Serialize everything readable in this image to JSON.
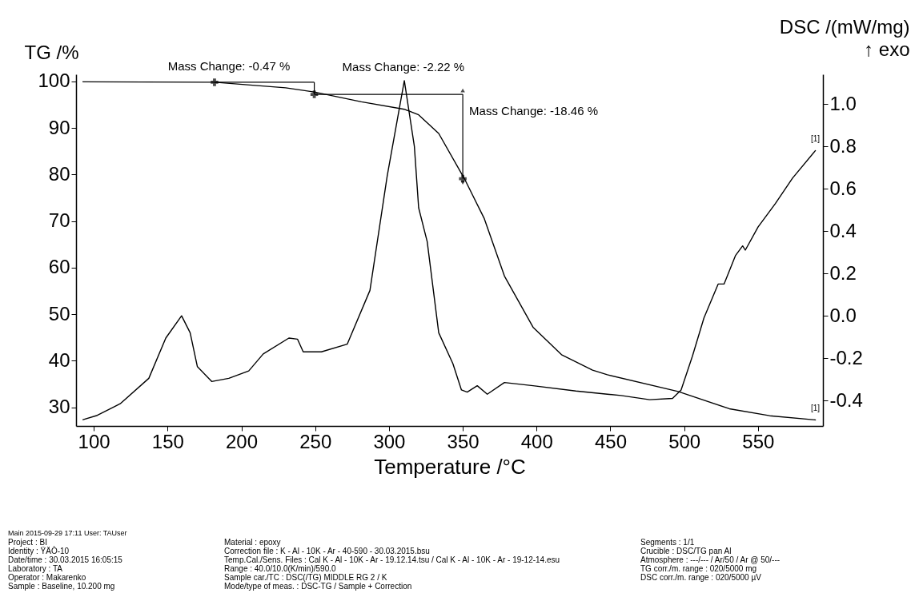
{
  "chart_data": {
    "type": "line",
    "xlabel": "Temperature /°C",
    "ylabel": "TG /%",
    "y2label": "DSC /(mW/mg)\n↑ exo",
    "xlim": [
      88,
      594
    ],
    "xticks": [
      100,
      150,
      200,
      250,
      300,
      350,
      400,
      450,
      500,
      550
    ],
    "ylim": [
      26,
      101.5
    ],
    "yticks": [
      30,
      40,
      50,
      60,
      70,
      80,
      90,
      100
    ],
    "y2lim": [
      -0.52,
      1.14
    ],
    "y2ticks": [
      {
        "value": -0.4,
        "label": "-0.4"
      },
      {
        "value": -0.2,
        "label": "-0.2"
      },
      {
        "value": 0,
        "label": "0.0"
      },
      {
        "value": 0.2,
        "label": "0.2"
      },
      {
        "value": 0.4,
        "label": "0.4"
      },
      {
        "value": 0.6,
        "label": "0.6"
      },
      {
        "value": 0.8,
        "label": "0.8"
      },
      {
        "value": 1,
        "label": "1.0"
      }
    ],
    "series": [
      {
        "name": "[1]",
        "color": "#000000",
        "x": [
          92.7,
          181.8,
          230,
          249.4,
          281.3,
          310.4,
          320.1,
          333.7,
          351.1,
          364.6,
          378.2,
          397.6,
          416.9,
          437.9,
          447.9,
          495.9,
          530.6,
          557.9,
          588.9
        ],
        "values": [
          99.9,
          99.8,
          98.6,
          97.7,
          95.6,
          94.0,
          92.8,
          88.8,
          79.1,
          70.5,
          58.2,
          47.2,
          41.3,
          38.0,
          37.0,
          33.4,
          29.7,
          28.2,
          27.3
        ]
      },
      {
        "name": "[1]",
        "color": "#000000",
        "axis": "y2",
        "x": [
          92.7,
          102.4,
          117.9,
          137.3,
          148.8,
          159.5,
          165.3,
          170.2,
          179.9,
          191.5,
          205,
          214.8,
          232.2,
          238,
          241.9,
          251.5,
          254.2,
          271.7,
          287.1,
          298.8,
          310.4,
          317.2,
          320.1,
          325.9,
          333.7,
          343.3,
          349.1,
          353,
          359.8,
          366.6,
          378.2,
          397.6,
          426.6,
          447.9,
          457.2,
          476.6,
          492.1,
          497.9,
          505.6,
          513.4,
          523,
          527,
          534.7,
          539.6,
          541.4,
          550.1,
          561.8,
          573.4,
          588.9
        ],
        "values": [
          -0.49,
          -0.47,
          -0.415,
          -0.295,
          -0.105,
          0.0,
          -0.08,
          -0.24,
          -0.31,
          -0.295,
          -0.26,
          -0.18,
          -0.105,
          -0.11,
          -0.17,
          -0.17,
          -0.17,
          -0.134,
          0.12,
          0.66,
          1.11,
          0.8,
          0.51,
          0.35,
          -0.08,
          -0.226,
          -0.35,
          -0.36,
          -0.33,
          -0.37,
          -0.315,
          -0.33,
          -0.355,
          -0.37,
          -0.376,
          -0.396,
          -0.39,
          -0.35,
          -0.19,
          -0.01,
          0.15,
          0.15,
          0.284,
          0.33,
          0.31,
          0.42,
          0.53,
          0.65,
          0.78
        ]
      }
    ],
    "annotations": [
      {
        "text": "Mass Change: -0.47 %",
        "x": 181.8,
        "y": 99.8
      },
      {
        "text": "Mass Change: -2.22 %",
        "x": 249.4,
        "y": 97.2
      },
      {
        "text": "Mass Change: -18.46 %",
        "x": 350,
        "y": 79.1
      },
      "Main  2015-09-29 17:11  User: TAUser",
      "Project :  BI",
      "Material :  epoxy",
      "Segments :  1/1",
      "Identity :  ŸÄÒ-10",
      "Correction file :  K - Al - 10K - Ar - 40-590 - 30.03.2015.bsu",
      "Crucible :  DSC/TG pan Al",
      "Date/time :  30.03.2015 16:05:15",
      "Temp.Cal./Sens. Files :  Cal K - Al - 10K - Ar - 19.12.14.tsu / Cal K - Al - 10K - Ar - 19-12-14.esu",
      "Atmosphere :  ---/--- / Ar/50 / Ar @ 50/---",
      "Laboratory :  TA",
      "Range :  40.0/10.0(K/min)/590.0",
      "TG corr./m. range :  020/5000 mg",
      "Operator :  Makarenko",
      "Sample car./TC :  DSC(/TG) MIDDLE RG 2 / K",
      "DSC corr./m. range :  020/5000 µV",
      "Sample :  Baseline, 10.200 mg",
      "Mode/type of meas. :  DSC-TG / Sample + Correction"
    ]
  }
}
